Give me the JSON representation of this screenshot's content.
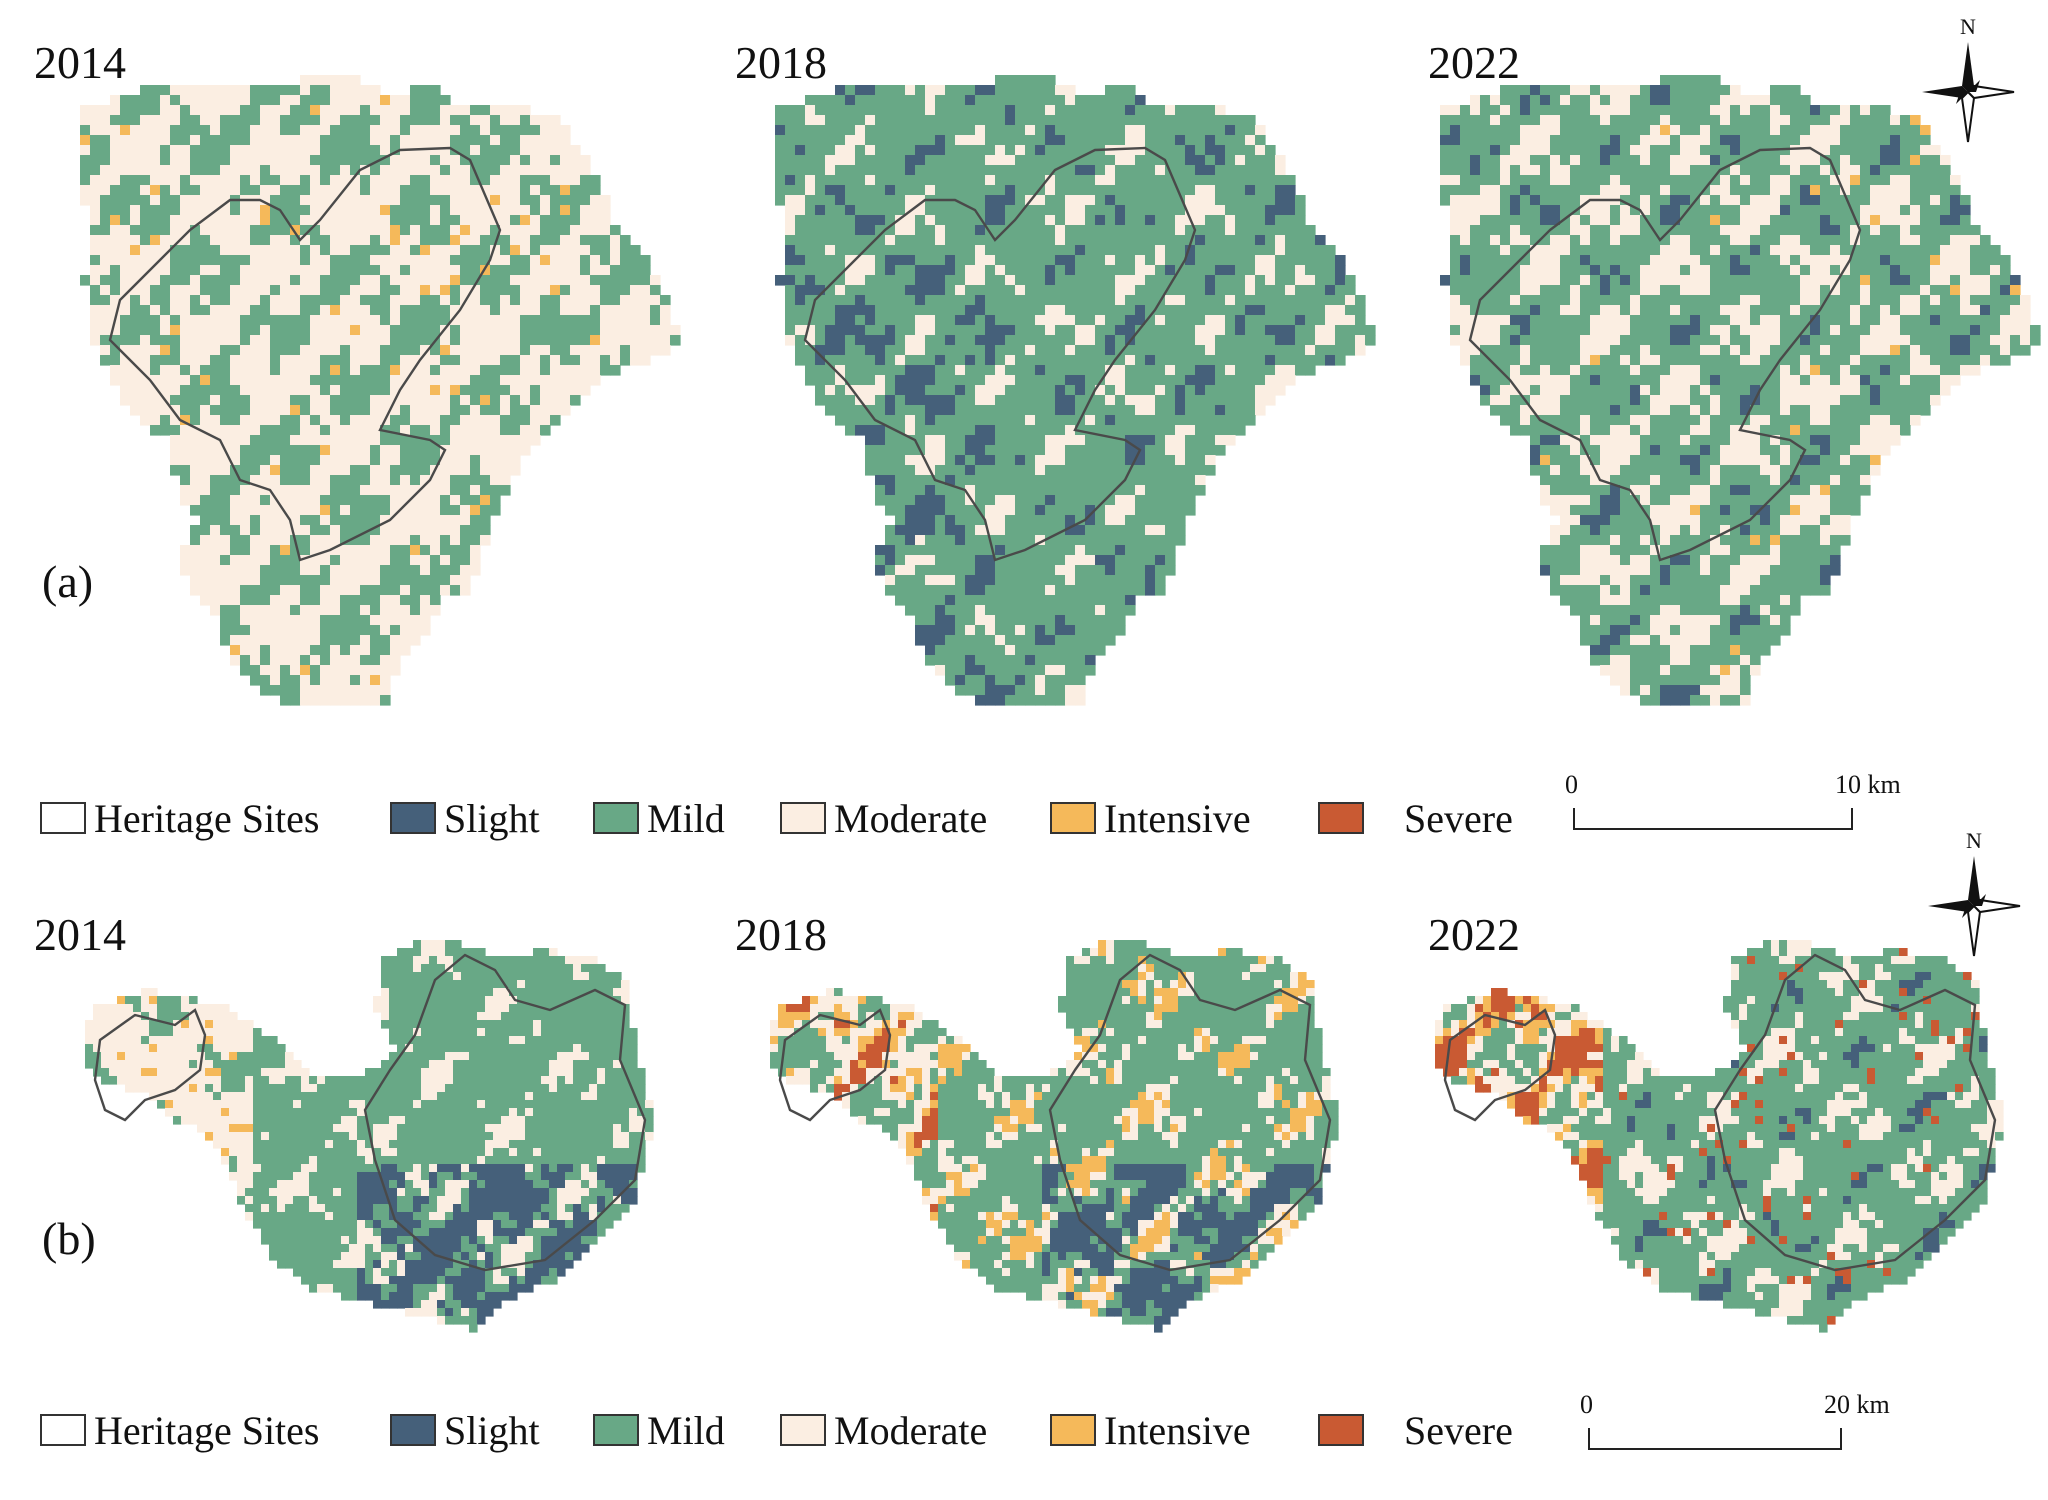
{
  "colors": {
    "heritage_outline": "#4a4a4a",
    "slight": "#45607a",
    "mild": "#68a886",
    "moderate": "#fbeee2",
    "intensive": "#f5b95a",
    "severe": "#c95a33"
  },
  "legend": {
    "heritage": "Heritage Sites",
    "slight": "Slight",
    "mild": "Mild",
    "moderate": "Moderate",
    "intensive": "Intensive",
    "severe": "Severe"
  },
  "compass_north": "N",
  "panel_a": {
    "label": "(a)",
    "years": [
      "2014",
      "2018",
      "2022"
    ],
    "scale_start": "0",
    "scale_end": "10  km"
  },
  "panel_b": {
    "label": "(b)",
    "years": [
      "2014",
      "2018",
      "2022"
    ],
    "scale_start": "0",
    "scale_end": "20  km"
  },
  "map_classes": {
    "a": [
      {
        "year": "2014",
        "dominant": [
          "moderate",
          "mild"
        ],
        "minor": [
          "intensive"
        ]
      },
      {
        "year": "2018",
        "dominant": [
          "mild",
          "slight"
        ],
        "minor": [
          "moderate"
        ]
      },
      {
        "year": "2022",
        "dominant": [
          "mild",
          "moderate"
        ],
        "minor": [
          "slight",
          "intensive"
        ]
      }
    ],
    "b": [
      {
        "year": "2014",
        "dominant": [
          "mild",
          "slight",
          "moderate"
        ],
        "minor": [
          "intensive"
        ]
      },
      {
        "year": "2018",
        "dominant": [
          "mild",
          "slight",
          "moderate"
        ],
        "minor": [
          "intensive",
          "severe"
        ]
      },
      {
        "year": "2022",
        "dominant": [
          "mild",
          "moderate",
          "severe"
        ],
        "minor": [
          "intensive",
          "slight"
        ]
      }
    ]
  }
}
